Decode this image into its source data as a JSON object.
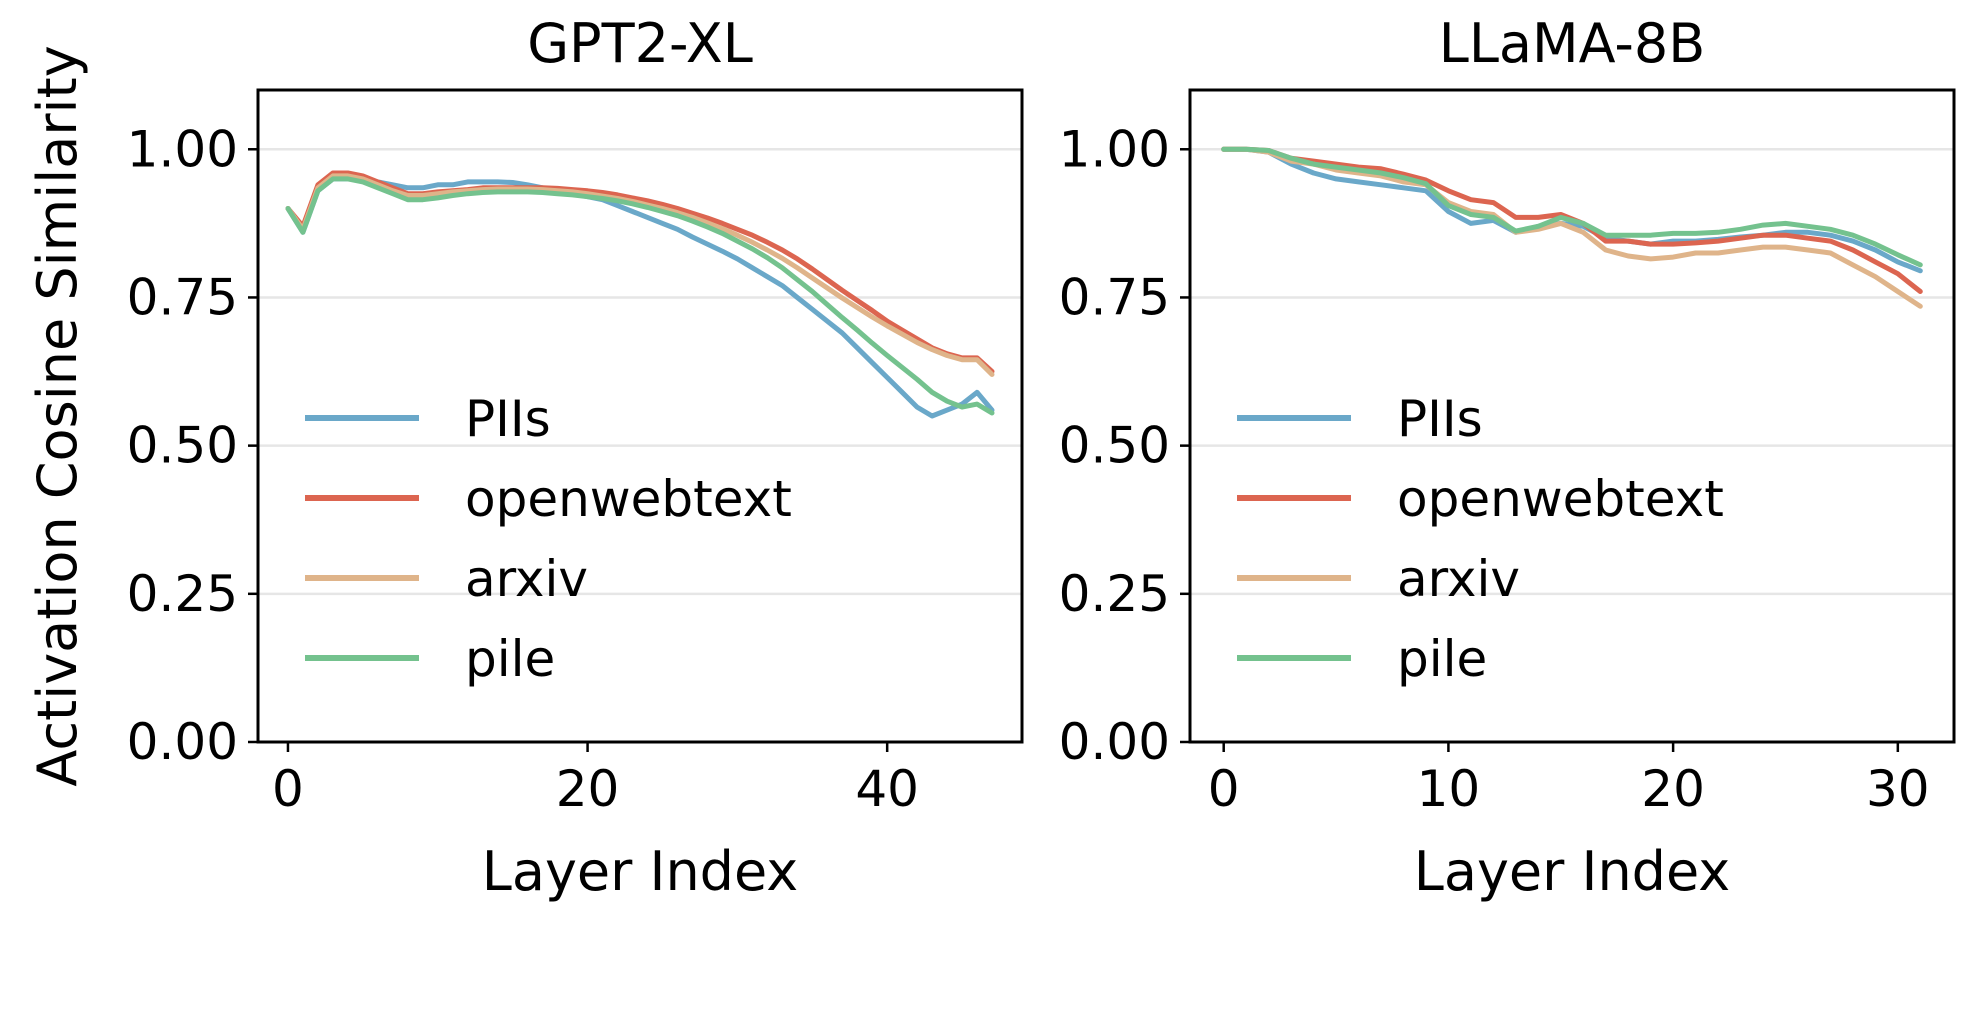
{
  "chart_data": [
    {
      "type": "line",
      "title": "GPT2-XL",
      "xlabel": "Layer Index",
      "ylabel": "Activation Cosine Similarity",
      "xlim": [
        -2,
        49
      ],
      "ylim": [
        0,
        1.1
      ],
      "xticks": [
        0,
        20,
        40
      ],
      "yticks": [
        0.0,
        0.25,
        0.5,
        0.75,
        1.0
      ],
      "ytick_labels": [
        "0.00",
        "0.25",
        "0.50",
        "0.75",
        "1.00"
      ],
      "grid": "horizontal",
      "legend": "center-left",
      "series": [
        {
          "name": "PIIs",
          "color": "#6aa8c9",
          "x": [
            0,
            1,
            2,
            3,
            4,
            5,
            6,
            7,
            8,
            9,
            10,
            11,
            12,
            13,
            14,
            15,
            16,
            17,
            18,
            19,
            20,
            21,
            22,
            23,
            24,
            25,
            26,
            27,
            28,
            29,
            30,
            31,
            32,
            33,
            34,
            35,
            36,
            37,
            38,
            39,
            40,
            41,
            42,
            43,
            44,
            45,
            46,
            47
          ],
          "y": [
            0.9,
            0.86,
            0.93,
            0.95,
            0.95,
            0.95,
            0.945,
            0.94,
            0.935,
            0.935,
            0.94,
            0.94,
            0.945,
            0.945,
            0.945,
            0.944,
            0.94,
            0.935,
            0.93,
            0.925,
            0.92,
            0.915,
            0.905,
            0.895,
            0.885,
            0.875,
            0.865,
            0.852,
            0.84,
            0.828,
            0.815,
            0.8,
            0.785,
            0.77,
            0.75,
            0.73,
            0.71,
            0.69,
            0.665,
            0.64,
            0.615,
            0.59,
            0.565,
            0.55,
            0.56,
            0.57,
            0.59,
            0.56
          ]
        },
        {
          "name": "openwebtext",
          "color": "#dc6550",
          "x": [
            0,
            1,
            2,
            3,
            4,
            5,
            6,
            7,
            8,
            9,
            10,
            11,
            12,
            13,
            14,
            15,
            16,
            17,
            18,
            19,
            20,
            21,
            22,
            23,
            24,
            25,
            26,
            27,
            28,
            29,
            30,
            31,
            32,
            33,
            34,
            35,
            36,
            37,
            38,
            39,
            40,
            41,
            42,
            43,
            44,
            45,
            46,
            47
          ],
          "y": [
            0.9,
            0.87,
            0.94,
            0.96,
            0.96,
            0.955,
            0.945,
            0.935,
            0.925,
            0.925,
            0.928,
            0.93,
            0.932,
            0.935,
            0.935,
            0.935,
            0.935,
            0.935,
            0.934,
            0.932,
            0.93,
            0.927,
            0.923,
            0.918,
            0.913,
            0.907,
            0.9,
            0.892,
            0.884,
            0.875,
            0.865,
            0.855,
            0.843,
            0.83,
            0.815,
            0.798,
            0.78,
            0.762,
            0.745,
            0.728,
            0.71,
            0.695,
            0.68,
            0.665,
            0.655,
            0.648,
            0.648,
            0.625
          ]
        },
        {
          "name": "arxiv",
          "color": "#dfb48a",
          "x": [
            0,
            1,
            2,
            3,
            4,
            5,
            6,
            7,
            8,
            9,
            10,
            11,
            12,
            13,
            14,
            15,
            16,
            17,
            18,
            19,
            20,
            21,
            22,
            23,
            24,
            25,
            26,
            27,
            28,
            29,
            30,
            31,
            32,
            33,
            34,
            35,
            36,
            37,
            38,
            39,
            40,
            41,
            42,
            43,
            44,
            45,
            46,
            47
          ],
          "y": [
            0.9,
            0.865,
            0.935,
            0.955,
            0.955,
            0.95,
            0.94,
            0.93,
            0.922,
            0.922,
            0.925,
            0.928,
            0.93,
            0.932,
            0.933,
            0.933,
            0.933,
            0.932,
            0.93,
            0.928,
            0.925,
            0.921,
            0.917,
            0.912,
            0.906,
            0.9,
            0.893,
            0.885,
            0.876,
            0.866,
            0.855,
            0.843,
            0.83,
            0.816,
            0.8,
            0.783,
            0.766,
            0.749,
            0.733,
            0.717,
            0.702,
            0.688,
            0.674,
            0.662,
            0.652,
            0.645,
            0.645,
            0.62
          ]
        },
        {
          "name": "pile",
          "color": "#74c28e",
          "x": [
            0,
            1,
            2,
            3,
            4,
            5,
            6,
            7,
            8,
            9,
            10,
            11,
            12,
            13,
            14,
            15,
            16,
            17,
            18,
            19,
            20,
            21,
            22,
            23,
            24,
            25,
            26,
            27,
            28,
            29,
            30,
            31,
            32,
            33,
            34,
            35,
            36,
            37,
            38,
            39,
            40,
            41,
            42,
            43,
            44,
            45,
            46,
            47
          ],
          "y": [
            0.9,
            0.86,
            0.93,
            0.95,
            0.95,
            0.945,
            0.935,
            0.925,
            0.915,
            0.915,
            0.918,
            0.922,
            0.925,
            0.927,
            0.928,
            0.928,
            0.928,
            0.927,
            0.925,
            0.923,
            0.92,
            0.917,
            0.913,
            0.908,
            0.902,
            0.895,
            0.888,
            0.879,
            0.869,
            0.858,
            0.845,
            0.832,
            0.817,
            0.8,
            0.78,
            0.76,
            0.738,
            0.716,
            0.695,
            0.673,
            0.652,
            0.632,
            0.612,
            0.59,
            0.575,
            0.565,
            0.57,
            0.555
          ]
        }
      ]
    },
    {
      "type": "line",
      "title": "LLaMA-8B",
      "xlabel": "Layer Index",
      "ylabel": "",
      "xlim": [
        -1.5,
        32.5
      ],
      "ylim": [
        0,
        1.1
      ],
      "xticks": [
        0,
        10,
        20,
        30
      ],
      "yticks": [
        0.0,
        0.25,
        0.5,
        0.75,
        1.0
      ],
      "ytick_labels": [
        "0.00",
        "0.25",
        "0.50",
        "0.75",
        "1.00"
      ],
      "grid": "horizontal",
      "legend": "center-left",
      "series": [
        {
          "name": "PIIs",
          "color": "#6aa8c9",
          "x": [
            0,
            1,
            2,
            3,
            4,
            5,
            6,
            7,
            8,
            9,
            10,
            11,
            12,
            13,
            14,
            15,
            16,
            17,
            18,
            19,
            20,
            21,
            22,
            23,
            24,
            25,
            26,
            27,
            28,
            29,
            30,
            31
          ],
          "y": [
            1.0,
            1.0,
            0.995,
            0.975,
            0.96,
            0.95,
            0.945,
            0.94,
            0.935,
            0.93,
            0.895,
            0.875,
            0.88,
            0.86,
            0.87,
            0.875,
            0.87,
            0.85,
            0.845,
            0.84,
            0.845,
            0.845,
            0.848,
            0.852,
            0.855,
            0.86,
            0.86,
            0.855,
            0.845,
            0.83,
            0.81,
            0.795
          ]
        },
        {
          "name": "openwebtext",
          "color": "#dc6550",
          "x": [
            0,
            1,
            2,
            3,
            4,
            5,
            6,
            7,
            8,
            9,
            10,
            11,
            12,
            13,
            14,
            15,
            16,
            17,
            18,
            19,
            20,
            21,
            22,
            23,
            24,
            25,
            26,
            27,
            28,
            29,
            30,
            31
          ],
          "y": [
            1.0,
            1.0,
            0.998,
            0.985,
            0.98,
            0.975,
            0.97,
            0.967,
            0.958,
            0.948,
            0.93,
            0.915,
            0.91,
            0.885,
            0.885,
            0.89,
            0.875,
            0.845,
            0.845,
            0.84,
            0.84,
            0.842,
            0.845,
            0.85,
            0.855,
            0.855,
            0.85,
            0.845,
            0.83,
            0.81,
            0.79,
            0.76
          ]
        },
        {
          "name": "arxiv",
          "color": "#dfb48a",
          "x": [
            0,
            1,
            2,
            3,
            4,
            5,
            6,
            7,
            8,
            9,
            10,
            11,
            12,
            13,
            14,
            15,
            16,
            17,
            18,
            19,
            20,
            21,
            22,
            23,
            24,
            25,
            26,
            27,
            28,
            29,
            30,
            31
          ],
          "y": [
            1.0,
            1.0,
            0.995,
            0.98,
            0.975,
            0.965,
            0.96,
            0.955,
            0.945,
            0.94,
            0.91,
            0.895,
            0.89,
            0.86,
            0.865,
            0.875,
            0.86,
            0.83,
            0.82,
            0.815,
            0.818,
            0.825,
            0.825,
            0.83,
            0.835,
            0.835,
            0.83,
            0.825,
            0.805,
            0.785,
            0.76,
            0.735
          ]
        },
        {
          "name": "pile",
          "color": "#74c28e",
          "x": [
            0,
            1,
            2,
            3,
            4,
            5,
            6,
            7,
            8,
            9,
            10,
            11,
            12,
            13,
            14,
            15,
            16,
            17,
            18,
            19,
            20,
            21,
            22,
            23,
            24,
            25,
            26,
            27,
            28,
            29,
            30,
            31
          ],
          "y": [
            1.0,
            1.0,
            0.998,
            0.985,
            0.975,
            0.97,
            0.965,
            0.96,
            0.952,
            0.942,
            0.905,
            0.89,
            0.885,
            0.862,
            0.87,
            0.885,
            0.875,
            0.855,
            0.855,
            0.855,
            0.858,
            0.858,
            0.86,
            0.865,
            0.872,
            0.875,
            0.87,
            0.865,
            0.855,
            0.84,
            0.822,
            0.805
          ]
        }
      ]
    }
  ]
}
